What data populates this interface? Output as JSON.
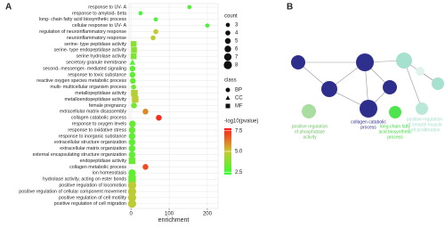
{
  "chart_data": {
    "type": "dot",
    "panel_label": "A",
    "categories": [
      "response to UV- A",
      "response to amyloid- beta",
      "long- chain fatty acid biosynthetic process",
      "cellular response to UV- A",
      "regulation of neuroinflammatory response",
      "neuroinflammatory response",
      "serine- type peptidase activity",
      "serine- type endopeptidase activity",
      "serine hydrolase activity",
      "secretory granule membrane",
      "second- messenger- mediated signaling",
      "response to toxic substance",
      "reactive oxygen species metabolic process",
      "multi- multicellular organism process",
      "metallopeptidase activity",
      "metalloendopeptidase activity",
      "female pregnancy",
      "extracellular matrix disassembly",
      "collagen catabolic process",
      "response to oxygen levels",
      "response to oxidative stress",
      "response to inorganic substance",
      "extracellular structure organization",
      "extracellular matrix organization",
      "external encapsulating structure organization",
      "endopeptidase activity",
      "collagen metabolic process",
      "ion homeostasis",
      "hydrolase activity, acting on ester bonds",
      "positive regulation of locomotion",
      "positive regulation of cellular component movement",
      "positive regulation of cell motility",
      "positive regulation of cell migration"
    ],
    "enrichment": [
      153,
      25,
      65,
      200,
      65,
      58,
      7,
      8,
      7,
      4,
      4,
      4,
      5,
      7,
      9,
      11,
      8,
      38,
      73,
      4,
      3,
      3,
      3,
      3,
      3,
      3,
      38,
      3,
      3,
      3,
      3,
      3,
      3
    ],
    "count": [
      3,
      3,
      3,
      3,
      4,
      4,
      5,
      5,
      5,
      5,
      5,
      5,
      5,
      4,
      6,
      6,
      5,
      5,
      5,
      6,
      6,
      6,
      6,
      6,
      6,
      6,
      5,
      7,
      7,
      8,
      8,
      8,
      8
    ],
    "pvalue": [
      2.8,
      2.5,
      2.6,
      2.6,
      5.0,
      4.8,
      3.8,
      3.8,
      3.6,
      2.8,
      3.0,
      3.0,
      3.2,
      3.4,
      4.6,
      4.8,
      3.4,
      6.0,
      7.5,
      3.2,
      3.2,
      3.0,
      3.0,
      3.0,
      3.0,
      3.2,
      7.0,
      3.0,
      3.2,
      4.8,
      4.8,
      4.8,
      4.8
    ],
    "class": [
      "BP",
      "BP",
      "BP",
      "BP",
      "BP",
      "BP",
      "MF",
      "MF",
      "MF",
      "CC",
      "BP",
      "BP",
      "BP",
      "BP",
      "MF",
      "MF",
      "BP",
      "BP",
      "BP",
      "BP",
      "BP",
      "BP",
      "BP",
      "BP",
      "BP",
      "MF",
      "BP",
      "BP",
      "MF",
      "BP",
      "BP",
      "BP",
      "BP"
    ],
    "xlim": [
      -5,
      228
    ],
    "xticks": [
      0,
      100,
      200
    ],
    "xlabel": "enrichment",
    "grid": true,
    "size_legend": {
      "title": "count",
      "values": [
        3,
        4,
        5,
        6,
        7,
        8
      ]
    },
    "class_legend": {
      "title": "class",
      "labels": [
        "BP",
        "CC",
        "MF"
      ],
      "shapes": [
        "circle",
        "triangle",
        "square"
      ]
    },
    "color_legend": {
      "title": "-log10(pvalue)",
      "clim": [
        2.2,
        7.8
      ],
      "ticks": [
        2.5,
        {
          "value": 5,
          "label": "5.0"
        },
        7.5
      ],
      "colors": [
        "#33ff33",
        "#c8c832",
        "#ff1a1a"
      ]
    }
  },
  "panel_b": {
    "panel_label": "B",
    "labels": [
      {
        "lines": [
          "collagen catabolic",
          "process"
        ]
      },
      {
        "lines": [
          "positive regulation",
          "of phosphatase",
          "activity"
        ]
      },
      {
        "lines": [
          "long-chain fatty",
          "acid biosynthetic",
          "process"
        ]
      },
      {
        "lines": [
          "positive regulation",
          "of smooth muscle",
          "cell proliferation"
        ]
      }
    ]
  }
}
